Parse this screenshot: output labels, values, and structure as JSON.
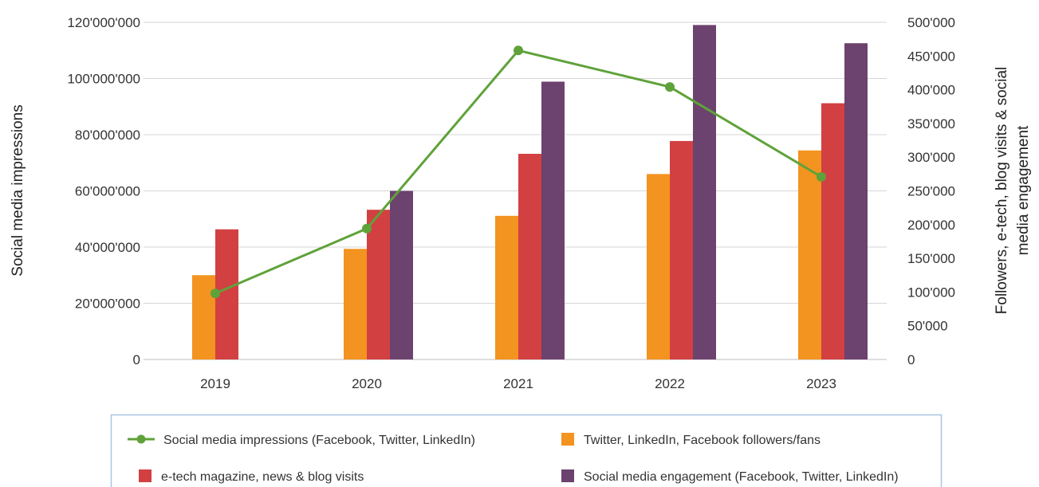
{
  "chart_data": {
    "type": "bar",
    "categories": [
      "2019",
      "2020",
      "2021",
      "2022",
      "2023"
    ],
    "series": [
      {
        "name": "Twitter, LinkedIn, Facebook followers/fans",
        "type": "bar",
        "axis": "right",
        "color": "#F39320",
        "values": [
          125000,
          164000,
          213000,
          275000,
          310000
        ]
      },
      {
        "name": "e-tech magazine, news & blog visits",
        "type": "bar",
        "axis": "right",
        "color": "#D24042",
        "values": [
          193000,
          222000,
          305000,
          324000,
          380000
        ]
      },
      {
        "name": "Social media engagement (Facebook, Twitter, LinkedIn)",
        "type": "bar",
        "axis": "right",
        "color": "#6C426F",
        "values": [
          null,
          250000,
          412000,
          496000,
          469000
        ]
      },
      {
        "name": "Social media impressions (Facebook, Twitter, LinkedIn)",
        "type": "line",
        "axis": "left",
        "color": "#5FA23A",
        "values": [
          23500000,
          46600000,
          110000000,
          97000000,
          65000000
        ]
      }
    ],
    "y_left": {
      "label": "Social media impressions",
      "ylim": [
        0,
        120000000
      ],
      "ticks": [
        "0",
        "20'000'000",
        "40'000'000",
        "60'000'000",
        "80'000'000",
        "100'000'000",
        "120'000'000"
      ]
    },
    "y_right": {
      "label": [
        "Followers, e-tech, blog visits & social",
        "media engagement"
      ],
      "ylim": [
        0,
        500000
      ],
      "ticks": [
        "0",
        "50'000",
        "100'000",
        "150'000",
        "200'000",
        "250'000",
        "300'000",
        "350'000",
        "400'000",
        "450'000",
        "500'000"
      ]
    },
    "grid": true,
    "legend": {
      "placement": "bottom",
      "order": [
        3,
        0,
        1,
        2
      ]
    }
  }
}
